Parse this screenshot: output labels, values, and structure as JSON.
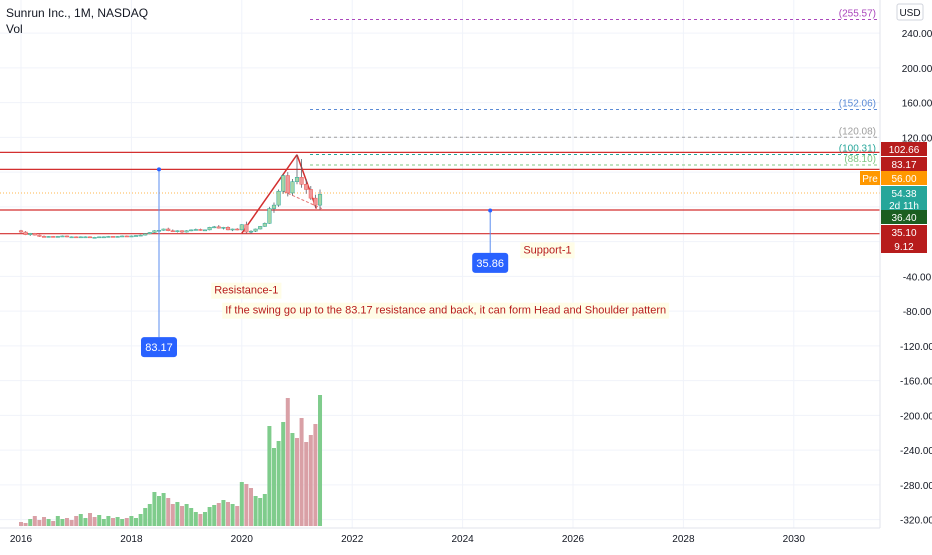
{
  "header": {
    "symbol": "Sunrun Inc., 1M, NASDAQ",
    "volume_label": "Vol",
    "currency": "USD"
  },
  "chart_data": {
    "type": "candlestick",
    "title": "Sunrun Inc., 1M, NASDAQ",
    "ylabel": "USD",
    "ylim": [
      -325,
      270
    ],
    "xlim": [
      2015.85,
      2030.85
    ],
    "x_ticks": [
      "2016",
      "2018",
      "2020",
      "2022",
      "2024",
      "2026",
      "2028",
      "2030"
    ],
    "x_tick_values": [
      2016,
      2018,
      2020,
      2022,
      2024,
      2026,
      2028,
      2030
    ],
    "y_ticks": [
      "240.00",
      "200.00",
      "160.00",
      "120.00",
      "-40.00",
      "-80.00",
      "-120.00",
      "-160.00",
      "-200.00",
      "-240.00",
      "-280.00",
      "-320.00"
    ],
    "y_tick_values": [
      240,
      200,
      160,
      120,
      -40,
      -80,
      -120,
      -160,
      -200,
      -240,
      -280,
      -320
    ],
    "price_labels": [
      {
        "text": "102.66",
        "value": 102.66,
        "color": "#b71c1c"
      },
      {
        "text": "83.17",
        "value": 83.17,
        "color": "#b71c1c"
      },
      {
        "text": "56.00",
        "value": 56.0,
        "color": "#ff9800",
        "prefix": "Pre"
      },
      {
        "text": "54.38",
        "value": 54.38,
        "color": "#26a69a",
        "sub": "2d 11h"
      },
      {
        "text": "36.40",
        "value": 36.4,
        "color": "#1b5e20"
      },
      {
        "text": "35.10",
        "value": 35.1,
        "color": "#b71c1c"
      },
      {
        "text": "9.12",
        "value": 9.12,
        "color": "#b71c1c"
      }
    ],
    "fib_levels": [
      {
        "text": "(255.57)",
        "value": 255.57,
        "color": "#ab47bc"
      },
      {
        "text": "(152.06)",
        "value": 152.06,
        "color": "#5b8bd6"
      },
      {
        "text": "(120.08)",
        "value": 120.08,
        "color": "#9e9e9e"
      },
      {
        "text": "(100.31)",
        "value": 100.31,
        "color": "#26a69a"
      },
      {
        "text": "(88.10)",
        "value": 88.1,
        "color": "#81c784"
      }
    ],
    "horizontal_lines": [
      {
        "value": 102.66,
        "color": "#d32f2f"
      },
      {
        "value": 83.17,
        "color": "#d32f2f"
      },
      {
        "value": 36.4,
        "color": "#d32f2f"
      },
      {
        "value": 9.12,
        "color": "#d32f2f"
      }
    ],
    "pre_market_line": 56.0,
    "trend_lines": [
      {
        "x1": 2020.0,
        "y1": 9.5,
        "x2": 2021.0,
        "y2": 100.0,
        "color": "#d32f2f"
      },
      {
        "x1": 2021.0,
        "y1": 100.0,
        "x2": 2021.35,
        "y2": 38.0,
        "color": "#d32f2f"
      }
    ],
    "trend_dashed": {
      "x1": 2020.75,
      "y1": 58.0,
      "x2": 2021.45,
      "y2": 38.0,
      "color": "#e57373"
    },
    "callouts": [
      {
        "text": "83.17",
        "x": 2018.5,
        "y_from": 83.17,
        "y_to": -110.0,
        "color": "#2962ff"
      },
      {
        "text": "35.86",
        "x": 2024.5,
        "y_from": 35.86,
        "y_to": -13.0,
        "color": "#2962ff"
      }
    ],
    "notes": [
      {
        "text": "Resistance-1",
        "x": 2019.5,
        "y": -60
      },
      {
        "text": "If the swing go up to the 83.17 resistance and back, it can form Head and Shoulder pattern",
        "x": 2019.7,
        "y": -83
      },
      {
        "text": "Support-1",
        "x": 2025.1,
        "y": -13.5
      }
    ],
    "candles": [
      {
        "x": 2016.0,
        "o": 12.5,
        "h": 13.5,
        "l": 10.0,
        "c": 11.0
      },
      {
        "x": 2016.083,
        "o": 11.0,
        "h": 12.0,
        "l": 7.5,
        "c": 8.0
      },
      {
        "x": 2016.167,
        "o": 8.0,
        "h": 10.0,
        "l": 6.5,
        "c": 9.5
      },
      {
        "x": 2016.25,
        "o": 9.5,
        "h": 10.0,
        "l": 7.0,
        "c": 7.5
      },
      {
        "x": 2016.333,
        "o": 7.5,
        "h": 8.0,
        "l": 5.5,
        "c": 6.0
      },
      {
        "x": 2016.417,
        "o": 6.0,
        "h": 7.0,
        "l": 5.0,
        "c": 5.5
      },
      {
        "x": 2016.5,
        "o": 5.5,
        "h": 6.5,
        "l": 5.0,
        "c": 6.0
      },
      {
        "x": 2016.583,
        "o": 6.0,
        "h": 6.5,
        "l": 5.0,
        "c": 5.5
      },
      {
        "x": 2016.667,
        "o": 5.5,
        "h": 6.5,
        "l": 5.0,
        "c": 6.0
      },
      {
        "x": 2016.75,
        "o": 6.0,
        "h": 7.0,
        "l": 5.5,
        "c": 6.5
      },
      {
        "x": 2016.833,
        "o": 6.5,
        "h": 7.0,
        "l": 5.0,
        "c": 5.5
      },
      {
        "x": 2016.917,
        "o": 5.5,
        "h": 6.0,
        "l": 5.0,
        "c": 5.5
      },
      {
        "x": 2017.0,
        "o": 5.5,
        "h": 6.0,
        "l": 4.5,
        "c": 5.0
      },
      {
        "x": 2017.083,
        "o": 5.0,
        "h": 6.0,
        "l": 4.5,
        "c": 5.5
      },
      {
        "x": 2017.167,
        "o": 5.5,
        "h": 6.0,
        "l": 5.0,
        "c": 5.5
      },
      {
        "x": 2017.25,
        "o": 5.5,
        "h": 6.0,
        "l": 5.0,
        "c": 5.0
      },
      {
        "x": 2017.333,
        "o": 5.0,
        "h": 5.5,
        "l": 4.5,
        "c": 5.0
      },
      {
        "x": 2017.417,
        "o": 5.0,
        "h": 5.5,
        "l": 4.5,
        "c": 5.5
      },
      {
        "x": 2017.5,
        "o": 5.5,
        "h": 6.0,
        "l": 5.0,
        "c": 5.5
      },
      {
        "x": 2017.583,
        "o": 5.5,
        "h": 6.5,
        "l": 5.0,
        "c": 6.0
      },
      {
        "x": 2017.667,
        "o": 6.0,
        "h": 6.5,
        "l": 5.0,
        "c": 5.5
      },
      {
        "x": 2017.75,
        "o": 5.5,
        "h": 6.5,
        "l": 5.0,
        "c": 6.0
      },
      {
        "x": 2017.833,
        "o": 6.0,
        "h": 7.0,
        "l": 5.5,
        "c": 6.5
      },
      {
        "x": 2017.917,
        "o": 6.5,
        "h": 7.0,
        "l": 5.5,
        "c": 6.0
      },
      {
        "x": 2018.0,
        "o": 6.0,
        "h": 7.0,
        "l": 5.5,
        "c": 6.5
      },
      {
        "x": 2018.083,
        "o": 6.5,
        "h": 7.5,
        "l": 6.0,
        "c": 7.0
      },
      {
        "x": 2018.167,
        "o": 7.0,
        "h": 8.0,
        "l": 6.5,
        "c": 7.5
      },
      {
        "x": 2018.25,
        "o": 7.5,
        "h": 9.5,
        "l": 7.0,
        "c": 9.0
      },
      {
        "x": 2018.333,
        "o": 9.0,
        "h": 11.0,
        "l": 8.5,
        "c": 10.5
      },
      {
        "x": 2018.417,
        "o": 10.5,
        "h": 13.0,
        "l": 10.0,
        "c": 12.5
      },
      {
        "x": 2018.5,
        "o": 12.5,
        "h": 14.0,
        "l": 11.5,
        "c": 13.0
      },
      {
        "x": 2018.583,
        "o": 13.0,
        "h": 15.0,
        "l": 12.5,
        "c": 14.5
      },
      {
        "x": 2018.667,
        "o": 14.5,
        "h": 16.0,
        "l": 12.0,
        "c": 12.5
      },
      {
        "x": 2018.75,
        "o": 12.5,
        "h": 14.0,
        "l": 11.0,
        "c": 11.5
      },
      {
        "x": 2018.833,
        "o": 11.5,
        "h": 13.0,
        "l": 10.5,
        "c": 12.5
      },
      {
        "x": 2018.917,
        "o": 12.5,
        "h": 13.0,
        "l": 10.0,
        "c": 11.0
      },
      {
        "x": 2019.0,
        "o": 11.0,
        "h": 13.0,
        "l": 10.5,
        "c": 12.5
      },
      {
        "x": 2019.083,
        "o": 12.5,
        "h": 14.0,
        "l": 12.0,
        "c": 13.5
      },
      {
        "x": 2019.167,
        "o": 13.5,
        "h": 15.0,
        "l": 13.0,
        "c": 14.0
      },
      {
        "x": 2019.25,
        "o": 14.0,
        "h": 15.0,
        "l": 12.5,
        "c": 13.0
      },
      {
        "x": 2019.333,
        "o": 13.0,
        "h": 14.0,
        "l": 12.5,
        "c": 13.5
      },
      {
        "x": 2019.417,
        "o": 13.5,
        "h": 17.0,
        "l": 13.0,
        "c": 16.5
      },
      {
        "x": 2019.5,
        "o": 16.5,
        "h": 18.0,
        "l": 15.5,
        "c": 17.0
      },
      {
        "x": 2019.583,
        "o": 17.0,
        "h": 19.0,
        "l": 15.0,
        "c": 15.5
      },
      {
        "x": 2019.667,
        "o": 15.5,
        "h": 17.0,
        "l": 14.0,
        "c": 16.5
      },
      {
        "x": 2019.75,
        "o": 16.5,
        "h": 17.5,
        "l": 13.0,
        "c": 13.5
      },
      {
        "x": 2019.833,
        "o": 13.5,
        "h": 15.0,
        "l": 12.0,
        "c": 14.5
      },
      {
        "x": 2019.917,
        "o": 14.5,
        "h": 15.5,
        "l": 13.0,
        "c": 13.5
      },
      {
        "x": 2020.0,
        "o": 13.5,
        "h": 20.0,
        "l": 13.0,
        "c": 19.5
      },
      {
        "x": 2020.083,
        "o": 19.5,
        "h": 23.0,
        "l": 9.5,
        "c": 11.0
      },
      {
        "x": 2020.167,
        "o": 11.0,
        "h": 13.0,
        "l": 9.0,
        "c": 12.0
      },
      {
        "x": 2020.25,
        "o": 12.0,
        "h": 15.0,
        "l": 11.0,
        "c": 14.5
      },
      {
        "x": 2020.333,
        "o": 14.5,
        "h": 18.0,
        "l": 14.0,
        "c": 17.5
      },
      {
        "x": 2020.417,
        "o": 17.5,
        "h": 22.0,
        "l": 17.0,
        "c": 21.0
      },
      {
        "x": 2020.5,
        "o": 21.0,
        "h": 40.0,
        "l": 20.5,
        "c": 38.0
      },
      {
        "x": 2020.583,
        "o": 38.0,
        "h": 45.0,
        "l": 33.0,
        "c": 42.0
      },
      {
        "x": 2020.667,
        "o": 42.0,
        "h": 60.0,
        "l": 40.0,
        "c": 58.0
      },
      {
        "x": 2020.75,
        "o": 58.0,
        "h": 78.0,
        "l": 55.0,
        "c": 76.0
      },
      {
        "x": 2020.833,
        "o": 76.0,
        "h": 80.0,
        "l": 52.0,
        "c": 56.0
      },
      {
        "x": 2020.917,
        "o": 56.0,
        "h": 72.0,
        "l": 53.0,
        "c": 69.0
      },
      {
        "x": 2021.0,
        "o": 69.0,
        "h": 100.0,
        "l": 66.0,
        "c": 74.0
      },
      {
        "x": 2021.083,
        "o": 74.0,
        "h": 95.0,
        "l": 62.0,
        "c": 66.0
      },
      {
        "x": 2021.167,
        "o": 66.0,
        "h": 72.0,
        "l": 55.0,
        "c": 60.0
      },
      {
        "x": 2021.25,
        "o": 60.0,
        "h": 64.0,
        "l": 48.0,
        "c": 50.0
      },
      {
        "x": 2021.333,
        "o": 50.0,
        "h": 54.0,
        "l": 39.0,
        "c": 42.0
      },
      {
        "x": 2021.417,
        "o": 42.0,
        "h": 60.0,
        "l": 36.5,
        "c": 54.38
      }
    ],
    "volume": [
      {
        "x": 2016.0,
        "v": 4,
        "up": false
      },
      {
        "x": 2016.083,
        "v": 3,
        "up": false
      },
      {
        "x": 2016.167,
        "v": 7,
        "up": true
      },
      {
        "x": 2016.25,
        "v": 10,
        "up": false
      },
      {
        "x": 2016.333,
        "v": 6,
        "up": false
      },
      {
        "x": 2016.417,
        "v": 9,
        "up": false
      },
      {
        "x": 2016.5,
        "v": 7,
        "up": true
      },
      {
        "x": 2016.583,
        "v": 5,
        "up": false
      },
      {
        "x": 2016.667,
        "v": 10,
        "up": true
      },
      {
        "x": 2016.75,
        "v": 7,
        "up": true
      },
      {
        "x": 2016.833,
        "v": 8,
        "up": false
      },
      {
        "x": 2016.917,
        "v": 6,
        "up": false
      },
      {
        "x": 2017.0,
        "v": 10,
        "up": false
      },
      {
        "x": 2017.083,
        "v": 12,
        "up": true
      },
      {
        "x": 2017.167,
        "v": 8,
        "up": true
      },
      {
        "x": 2017.25,
        "v": 13,
        "up": false
      },
      {
        "x": 2017.333,
        "v": 9,
        "up": false
      },
      {
        "x": 2017.417,
        "v": 11,
        "up": true
      },
      {
        "x": 2017.5,
        "v": 7,
        "up": true
      },
      {
        "x": 2017.583,
        "v": 10,
        "up": true
      },
      {
        "x": 2017.667,
        "v": 8,
        "up": false
      },
      {
        "x": 2017.75,
        "v": 9,
        "up": true
      },
      {
        "x": 2017.833,
        "v": 7,
        "up": true
      },
      {
        "x": 2017.917,
        "v": 8,
        "up": false
      },
      {
        "x": 2018.0,
        "v": 10,
        "up": true
      },
      {
        "x": 2018.083,
        "v": 8,
        "up": true
      },
      {
        "x": 2018.167,
        "v": 12,
        "up": true
      },
      {
        "x": 2018.25,
        "v": 18,
        "up": true
      },
      {
        "x": 2018.333,
        "v": 22,
        "up": true
      },
      {
        "x": 2018.417,
        "v": 34,
        "up": true
      },
      {
        "x": 2018.5,
        "v": 30,
        "up": true
      },
      {
        "x": 2018.583,
        "v": 33,
        "up": true
      },
      {
        "x": 2018.667,
        "v": 28,
        "up": false
      },
      {
        "x": 2018.75,
        "v": 22,
        "up": false
      },
      {
        "x": 2018.833,
        "v": 24,
        "up": true
      },
      {
        "x": 2018.917,
        "v": 20,
        "up": false
      },
      {
        "x": 2019.0,
        "v": 22,
        "up": true
      },
      {
        "x": 2019.083,
        "v": 18,
        "up": true
      },
      {
        "x": 2019.167,
        "v": 14,
        "up": true
      },
      {
        "x": 2019.25,
        "v": 12,
        "up": false
      },
      {
        "x": 2019.333,
        "v": 14,
        "up": true
      },
      {
        "x": 2019.417,
        "v": 19,
        "up": true
      },
      {
        "x": 2019.5,
        "v": 21,
        "up": true
      },
      {
        "x": 2019.583,
        "v": 23,
        "up": false
      },
      {
        "x": 2019.667,
        "v": 26,
        "up": true
      },
      {
        "x": 2019.75,
        "v": 24,
        "up": false
      },
      {
        "x": 2019.833,
        "v": 22,
        "up": true
      },
      {
        "x": 2019.917,
        "v": 20,
        "up": false
      },
      {
        "x": 2020.0,
        "v": 44,
        "up": true
      },
      {
        "x": 2020.083,
        "v": 42,
        "up": false
      },
      {
        "x": 2020.167,
        "v": 38,
        "up": false
      },
      {
        "x": 2020.25,
        "v": 30,
        "up": true
      },
      {
        "x": 2020.333,
        "v": 28,
        "up": true
      },
      {
        "x": 2020.417,
        "v": 32,
        "up": true
      },
      {
        "x": 2020.5,
        "v": 100,
        "up": true
      },
      {
        "x": 2020.583,
        "v": 78,
        "up": true
      },
      {
        "x": 2020.667,
        "v": 85,
        "up": true
      },
      {
        "x": 2020.75,
        "v": 104,
        "up": true
      },
      {
        "x": 2020.833,
        "v": 128,
        "up": false
      },
      {
        "x": 2020.917,
        "v": 93,
        "up": true
      },
      {
        "x": 2021.0,
        "v": 88,
        "up": false
      },
      {
        "x": 2021.083,
        "v": 108,
        "up": false
      },
      {
        "x": 2021.167,
        "v": 84,
        "up": false
      },
      {
        "x": 2021.25,
        "v": 91,
        "up": false
      },
      {
        "x": 2021.333,
        "v": 102,
        "up": false
      },
      {
        "x": 2021.417,
        "v": 131,
        "up": true
      }
    ]
  }
}
